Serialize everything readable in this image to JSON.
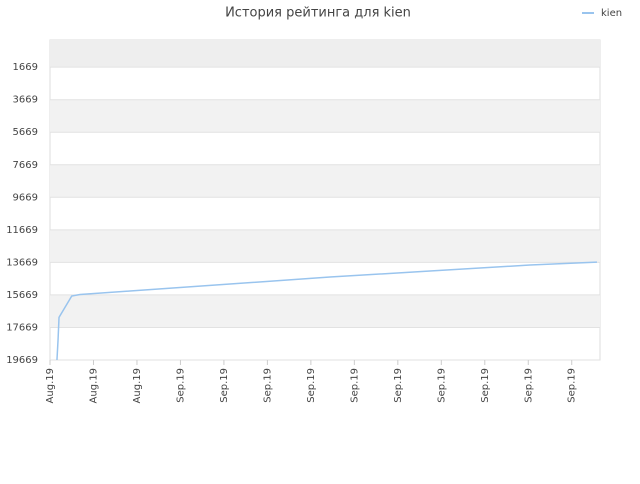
{
  "chart_data": {
    "type": "line",
    "title": "История рейтинга для kien",
    "x": [
      0.64,
      0.74,
      0.83,
      2.0,
      2.76,
      7.36,
      16.56,
      25.76,
      34.96,
      44.16,
      50.32
    ],
    "series": [
      {
        "name": "kien",
        "color": "#99c4ee",
        "values": [
          19669,
          18440,
          17050,
          15737,
          15645,
          15430,
          15000,
          14570,
          14200,
          13830,
          13650
        ]
      }
    ],
    "xlim": [
      0,
      50.6
    ],
    "xticks": [
      {
        "value": 0,
        "label": "Aug.19"
      },
      {
        "value": 4,
        "label": "Aug.19"
      },
      {
        "value": 8,
        "label": "Aug.19"
      },
      {
        "value": 12,
        "label": "Sep.19"
      },
      {
        "value": 16,
        "label": "Sep.19"
      },
      {
        "value": 20,
        "label": "Sep.19"
      },
      {
        "value": 24,
        "label": "Sep.19"
      },
      {
        "value": 28,
        "label": "Sep.19"
      },
      {
        "value": 32,
        "label": "Sep.19"
      },
      {
        "value": 36,
        "label": "Sep.19"
      },
      {
        "value": 40,
        "label": "Sep.19"
      },
      {
        "value": 44,
        "label": "Sep.19"
      },
      {
        "value": 48,
        "label": "Sep.19"
      }
    ],
    "ylim": [
      19669,
      0
    ],
    "yticks": [
      1669,
      3669,
      5669,
      7669,
      9669,
      11669,
      13669,
      15669,
      17669,
      19669
    ],
    "grid": true,
    "legend": "top-right"
  }
}
